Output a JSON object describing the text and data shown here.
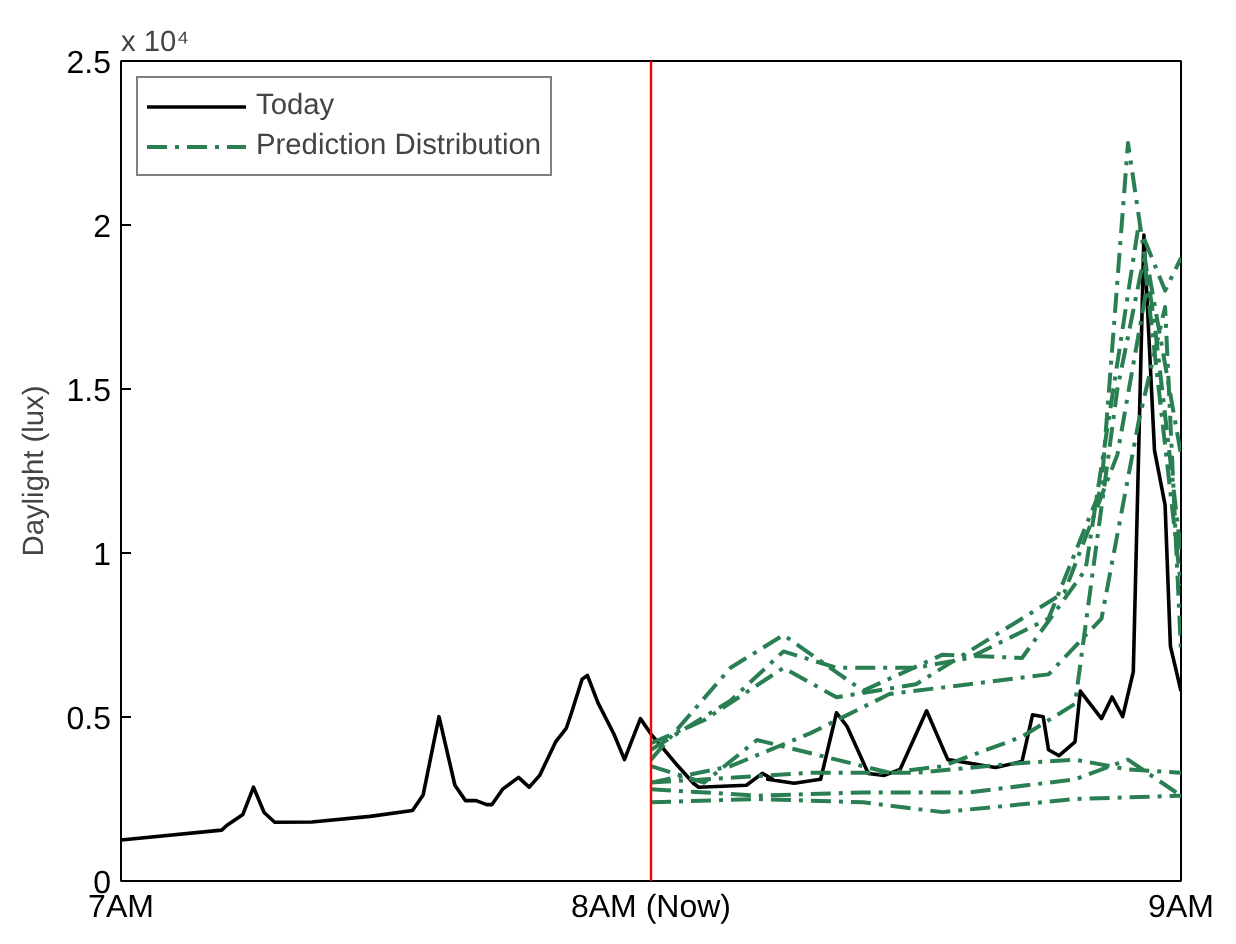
{
  "chart_data": {
    "type": "line",
    "ylabel": "Daylight (lux)",
    "annotations": [
      "x 10⁴"
    ],
    "xlim": [
      7,
      9
    ],
    "ylim": [
      0,
      2.5
    ],
    "xticks": [
      {
        "value": 7,
        "label": "7AM"
      },
      {
        "value": 8,
        "label": "8AM (Now)"
      },
      {
        "value": 9,
        "label": "9AM"
      }
    ],
    "yticks": [
      0,
      0.5,
      1,
      1.5,
      2,
      2.5
    ],
    "grid": false,
    "legend": "top left",
    "marker": "none",
    "ref_lines": [
      {
        "axis": "x",
        "value": 8,
        "color": "#ff0000"
      }
    ],
    "series": [
      {
        "name": "Today",
        "color": "#000000",
        "line_style": "solid",
        "x": [
          7.0,
          7.19,
          7.2,
          7.23,
          7.25,
          7.27,
          7.29,
          7.36,
          7.47,
          7.55,
          7.57,
          7.6,
          7.63,
          7.65,
          7.67,
          7.69,
          7.7,
          7.72,
          7.75,
          7.77,
          7.79,
          7.82,
          7.84,
          7.85,
          7.87,
          7.88,
          7.9,
          7.93,
          7.95,
          7.96,
          7.98,
          8.0,
          8.05,
          8.08,
          8.09,
          8.18,
          8.21,
          8.23,
          8.22,
          8.27,
          8.32,
          8.35,
          8.37,
          8.41,
          8.44,
          8.47,
          8.52,
          8.56,
          8.65,
          8.7,
          8.72,
          8.74,
          8.75,
          8.77,
          8.8,
          8.81,
          8.85,
          8.87,
          8.89,
          8.91,
          8.93,
          8.95,
          8.97,
          8.98,
          9.0
        ],
        "values": [
          0.125,
          0.155,
          0.17,
          0.203,
          0.286,
          0.209,
          0.179,
          0.18,
          0.197,
          0.215,
          0.262,
          0.501,
          0.292,
          0.245,
          0.245,
          0.233,
          0.233,
          0.28,
          0.316,
          0.286,
          0.322,
          0.424,
          0.465,
          0.513,
          0.615,
          0.627,
          0.543,
          0.448,
          0.37,
          0.412,
          0.495,
          0.448,
          0.352,
          0.298,
          0.286,
          0.292,
          0.328,
          0.31,
          0.31,
          0.298,
          0.31,
          0.513,
          0.471,
          0.328,
          0.322,
          0.34,
          0.519,
          0.37,
          0.346,
          0.364,
          0.507,
          0.501,
          0.4,
          0.382,
          0.424,
          0.579,
          0.495,
          0.561,
          0.501,
          0.638,
          1.969,
          1.313,
          1.146,
          0.716,
          0.579
        ]
      },
      {
        "name": "Prediction Distribution",
        "color": "#2a7f52",
        "line_style": "dashdot",
        "x": [
          8.0,
          8.2,
          8.4,
          8.55,
          8.8,
          9.0
        ],
        "values": [
          0.24,
          0.25,
          0.24,
          0.21,
          0.25,
          0.26
        ]
      },
      {
        "color": "#2a7f52",
        "line_style": "dashdot",
        "x": [
          8.0,
          8.2,
          8.4,
          8.6,
          8.8,
          8.9,
          9.0
        ],
        "values": [
          0.28,
          0.26,
          0.27,
          0.27,
          0.31,
          0.37,
          0.26
        ]
      },
      {
        "color": "#2a7f52",
        "line_style": "dashdot",
        "x": [
          8.0,
          8.3,
          8.5,
          8.7,
          8.8,
          8.9,
          9.0
        ],
        "values": [
          0.3,
          0.33,
          0.33,
          0.36,
          0.37,
          0.34,
          0.33
        ]
      },
      {
        "color": "#2a7f52",
        "line_style": "dashdot",
        "x": [
          8.0,
          8.1,
          8.2,
          8.35,
          8.45,
          8.55,
          8.7,
          8.8,
          8.88,
          8.93,
          9.0
        ],
        "values": [
          0.35,
          0.3,
          0.43,
          0.37,
          0.33,
          0.35,
          0.44,
          0.54,
          1.5,
          1.9,
          0.9
        ]
      },
      {
        "color": "#2a7f52",
        "line_style": "dashdot",
        "x": [
          8.0,
          8.15,
          8.25,
          8.35,
          8.5,
          8.6,
          8.75,
          8.85,
          8.9,
          8.95,
          9.0
        ],
        "values": [
          0.4,
          0.55,
          0.7,
          0.65,
          0.65,
          0.68,
          0.8,
          1.2,
          2.25,
          1.7,
          1.0
        ]
      },
      {
        "color": "#2a7f52",
        "line_style": "dashdot",
        "x": [
          8.0,
          8.15,
          8.25,
          8.4,
          8.55,
          8.7,
          8.82,
          8.92,
          8.97,
          9.0
        ],
        "values": [
          0.37,
          0.65,
          0.75,
          0.58,
          0.69,
          0.68,
          0.95,
          2.0,
          1.8,
          1.9
        ]
      },
      {
        "color": "#2a7f52",
        "line_style": "dashdot",
        "x": [
          8.0,
          8.1,
          8.25,
          8.35,
          8.5,
          8.65,
          8.78,
          8.88,
          8.94,
          9.0
        ],
        "values": [
          0.42,
          0.49,
          0.65,
          0.56,
          0.6,
          0.75,
          0.88,
          1.3,
          1.85,
          1.3
        ]
      },
      {
        "color": "#2a7f52",
        "line_style": "dashdot",
        "x": [
          8.0,
          8.15,
          8.3,
          8.45,
          8.6,
          8.75,
          8.85,
          8.92,
          8.97,
          9.0
        ],
        "values": [
          0.3,
          0.35,
          0.45,
          0.57,
          0.6,
          0.63,
          0.8,
          1.4,
          1.75,
          0.7
        ]
      }
    ]
  }
}
